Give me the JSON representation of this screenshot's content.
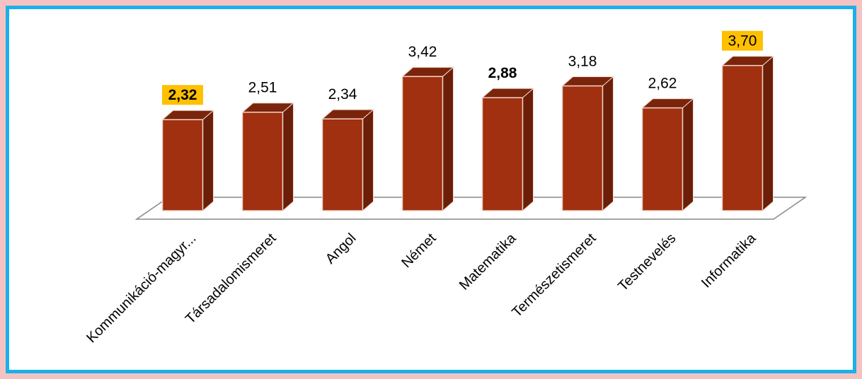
{
  "chart_data": {
    "type": "bar",
    "categories": [
      "Kommunikáció-magyr...",
      "Társadalomismeret",
      "Angol",
      "Német",
      "Matematika",
      "Természetismeret",
      "Testnevelés",
      "Informatika"
    ],
    "values": [
      2.32,
      2.51,
      2.34,
      3.42,
      2.88,
      3.18,
      2.62,
      3.7
    ],
    "value_labels": [
      "2,32",
      "2,51",
      "2,34",
      "3,42",
      "2,88",
      "3,18",
      "2,62",
      "3,70"
    ],
    "highlight": [
      {
        "index": 0,
        "background": "#ffc000",
        "bold": true
      },
      {
        "index": 4,
        "background": "#ffffff",
        "bold": true
      },
      {
        "index": 7,
        "background": "#ffc000",
        "bold": false
      }
    ],
    "title": "",
    "xlabel": "",
    "ylabel": "",
    "ylim": [
      0,
      4.2
    ],
    "grid": false,
    "legend": "none",
    "colors": {
      "bar_front": "#a0300f",
      "bar_side": "#6b1e08",
      "bar_top": "#7a250b",
      "bar_edge": "#f2d6cc",
      "floor": "#888888",
      "frame_outer": "#f4c2c2",
      "frame_border": "#1ab0ea"
    }
  }
}
